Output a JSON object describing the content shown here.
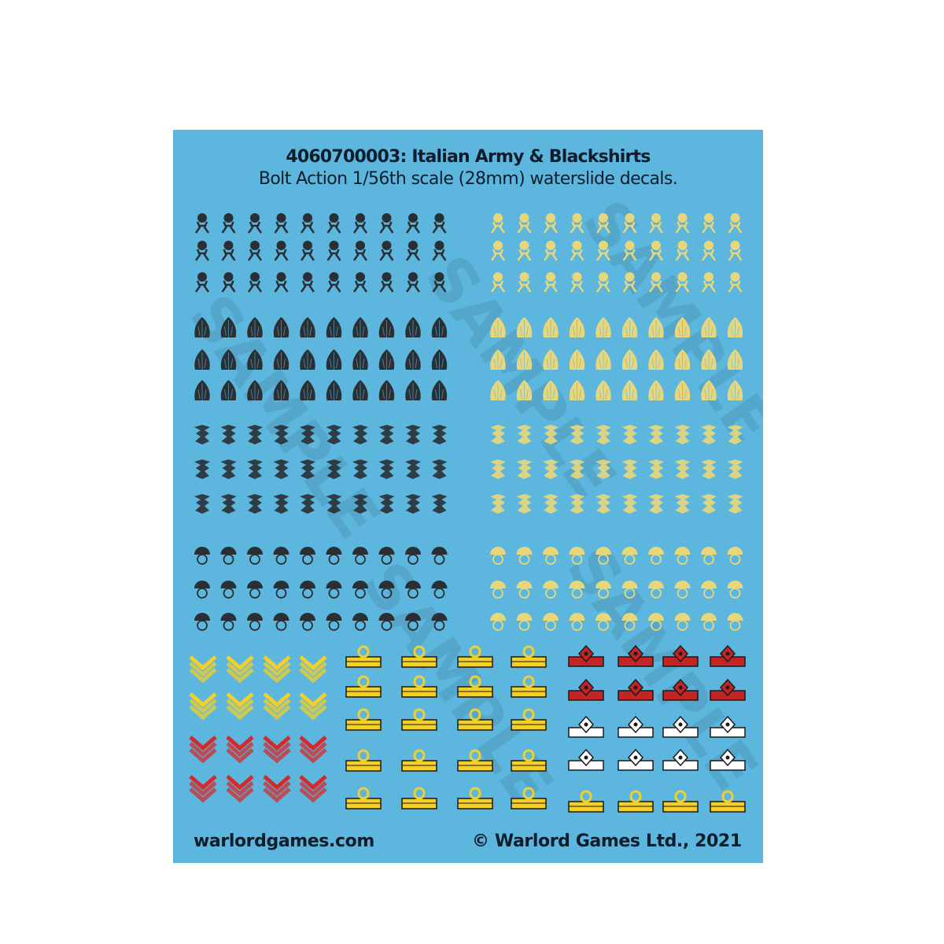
{
  "sheet": {
    "title": "4060700003: Italian Army & Blackshirts",
    "subtitle": "Bolt Action 1/56th scale (28mm) waterslide decals.",
    "footer_left": "warlordgames.com",
    "footer_right": "© Warlord Games Ltd., 2021",
    "watermark": "SAMPLE",
    "colors": {
      "background": "#5cb6de",
      "black_decal": "#2a2f33",
      "gold_decal": "#e8d77a",
      "yellow": "#f2cf2a",
      "red": "#d42a2a",
      "white": "#ffffff"
    }
  },
  "decal_groups": [
    {
      "name": "cap-badge-black",
      "icon": "crown-badge-icon",
      "color": "#2a2f33"
    },
    {
      "name": "cap-badge-gold",
      "icon": "crown-badge-icon",
      "color": "#e8d77a"
    },
    {
      "name": "flame-badge-black",
      "icon": "flame-badge-icon",
      "color": "#2a2f33"
    },
    {
      "name": "flame-badge-gold",
      "icon": "flame-badge-icon",
      "color": "#e8d77a"
    },
    {
      "name": "eagle-badge-black",
      "icon": "eagle-badge-icon",
      "color": "#2a2f33"
    },
    {
      "name": "eagle-badge-gold",
      "icon": "eagle-badge-icon",
      "color": "#e8d77a"
    },
    {
      "name": "grenade-badge-black",
      "icon": "grenade-badge-icon",
      "color": "#2a2f33"
    },
    {
      "name": "grenade-badge-gold",
      "icon": "grenade-badge-icon",
      "color": "#e8d77a"
    },
    {
      "name": "chevron-yellow",
      "icon": "chevron-rank-icon",
      "color": "#f2cf2a"
    },
    {
      "name": "chevron-red",
      "icon": "chevron-rank-icon",
      "color": "#d42a2a"
    },
    {
      "name": "rank-bar-gold",
      "icon": "rank-bar-icon",
      "color": "#f2cf2a"
    },
    {
      "name": "rank-star-red",
      "icon": "rank-star-icon",
      "color": "#c42424"
    },
    {
      "name": "rank-star-white",
      "icon": "rank-star-icon",
      "color": "#ffffff"
    }
  ]
}
